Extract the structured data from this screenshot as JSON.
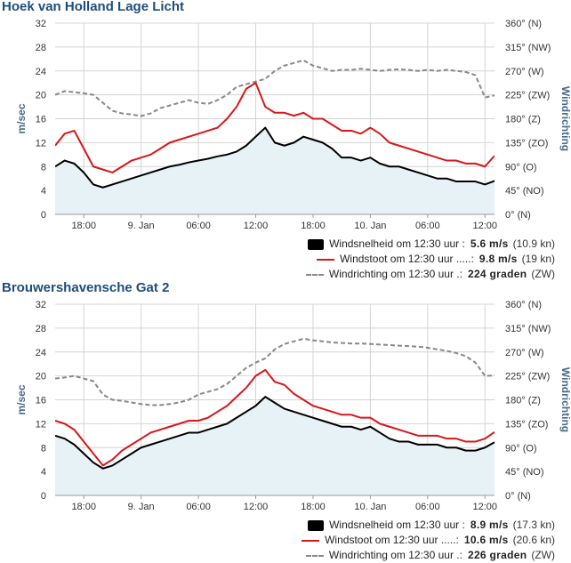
{
  "charts": [
    {
      "title": "Hoek van Holland Lage Licht",
      "legend": [
        {
          "label": "Windsnelheid om 12:30 uur :",
          "value": "5.6 m/s",
          "conv": "(10.9 kn)"
        },
        {
          "label": "Windstoot om 12:30 uur .....:",
          "value": "9.8 m/s",
          "conv": "(19 kn)"
        },
        {
          "label": "Windrichting om 12:30 uur .:",
          "value": "224 graden",
          "conv": "(ZW)"
        }
      ]
    },
    {
      "title": "Brouwershavensche Gat 2",
      "legend": [
        {
          "label": "Windsnelheid om 12:30 uur :",
          "value": "8.9 m/s",
          "conv": "(17.3 kn)"
        },
        {
          "label": "Windstoot om 12:30 uur .....:",
          "value": "10.6 m/s",
          "conv": "(20.6 kn)"
        },
        {
          "label": "Windrichting om 12:30 uur .:",
          "value": "226 graden",
          "conv": "(ZW)"
        }
      ]
    }
  ],
  "chart_data": [
    {
      "type": "line",
      "title": "Hoek van Holland Lage Licht",
      "ylabel": "m/sec",
      "y2label": "Windrichting",
      "ylim": [
        0,
        32
      ],
      "y2lim": [
        0,
        360
      ],
      "yticks": [
        "0",
        "4",
        "8",
        "12",
        "16",
        "20",
        "24",
        "28",
        "32"
      ],
      "y2ticks": [
        "0° (N)",
        "45° (NO)",
        "90° (O)",
        "135° (ZO)",
        "180° (Z)",
        "225° (ZW)",
        "270° (W)",
        "315° (NW)",
        "360° (N)"
      ],
      "x_hours_range": [
        -21,
        1
      ],
      "xticks": [
        {
          "label": "18:00",
          "h": -18.5
        },
        {
          "label": "9. Jan",
          "h": -12.5
        },
        {
          "label": "06:00",
          "h": -6.5
        },
        {
          "label": "12:00",
          "h": -0.5
        },
        {
          "label": "18:00",
          "h": 5.5
        },
        {
          "label": "10. Jan",
          "h": 11.5
        },
        {
          "label": "06:00",
          "h": 17.5
        },
        {
          "label": "12:00",
          "h": 23.5
        }
      ],
      "x_hours": [
        -21.5,
        -20.5,
        -19.5,
        -18.5,
        -17.5,
        -16.5,
        -15.5,
        -14.5,
        -13.5,
        -12.5,
        -11.5,
        -10.5,
        -9.5,
        -8.5,
        -7.5,
        -6.5,
        -5.5,
        -4.5,
        -3.5,
        -2.5,
        -1.5,
        -0.5,
        0.5,
        1.5,
        2.5,
        3.5,
        4.5,
        5.5,
        6.5,
        7.5,
        8.5,
        9.5,
        10.5,
        11.5,
        12.5,
        13.5,
        14.5,
        15.5,
        16.5,
        17.5,
        18.5,
        19.5,
        20.5,
        21.5,
        22.5,
        23.5,
        24.5
      ],
      "series": [
        {
          "name": "Windsnelheid",
          "color": "#000000",
          "values": [
            8,
            9,
            8.5,
            7,
            5,
            4.5,
            5,
            5.5,
            6,
            6.5,
            7,
            7.5,
            8,
            8.3,
            8.7,
            9,
            9.3,
            9.7,
            10,
            10.5,
            11.5,
            13,
            14.5,
            12,
            11.5,
            12,
            13,
            12.5,
            12,
            11,
            9.5,
            9.5,
            9,
            9.5,
            8.5,
            8,
            8,
            7.5,
            7,
            6.5,
            6,
            6,
            5.5,
            5.5,
            5.5,
            5,
            5.6
          ]
        },
        {
          "name": "Windstoot",
          "color": "#d8161b",
          "values": [
            11.5,
            13.5,
            14,
            11,
            8,
            7.5,
            7,
            8,
            9,
            9.5,
            10,
            11,
            12,
            12.5,
            13,
            13.5,
            14,
            14.5,
            16,
            18,
            21,
            22,
            18,
            17,
            17,
            16.5,
            17,
            16,
            16,
            15,
            14,
            14,
            13.5,
            14.5,
            13.5,
            12,
            11.5,
            11,
            10.5,
            10,
            9.5,
            9,
            9,
            8.5,
            8.5,
            8,
            9.8
          ]
        },
        {
          "name": "Windrichting",
          "color": "#888888",
          "dash": true,
          "values": [
            225,
            232,
            230,
            228,
            225,
            210,
            195,
            190,
            188,
            185,
            190,
            200,
            205,
            210,
            215,
            210,
            208,
            215,
            225,
            240,
            245,
            250,
            255,
            270,
            280,
            285,
            290,
            280,
            275,
            270,
            272,
            272,
            274,
            272,
            270,
            272,
            273,
            272,
            270,
            272,
            270,
            272,
            270,
            268,
            262,
            220,
            224
          ]
        }
      ]
    },
    {
      "type": "line",
      "title": "Brouwershavensche Gat 2",
      "ylabel": "m/sec",
      "y2label": "Windrichting",
      "ylim": [
        0,
        32
      ],
      "y2lim": [
        0,
        360
      ],
      "yticks": [
        "0",
        "4",
        "8",
        "12",
        "16",
        "20",
        "24",
        "28",
        "32"
      ],
      "y2ticks": [
        "0° (N)",
        "45° (NO)",
        "90° (O)",
        "135° (ZO)",
        "180° (Z)",
        "225° (ZW)",
        "270° (W)",
        "315° (NW)",
        "360° (N)"
      ],
      "x_hours_range": [
        -21,
        1
      ],
      "xticks": [
        {
          "label": "18:00",
          "h": -18.5
        },
        {
          "label": "9. Jan",
          "h": -12.5
        },
        {
          "label": "06:00",
          "h": -6.5
        },
        {
          "label": "12:00",
          "h": -0.5
        },
        {
          "label": "18:00",
          "h": 5.5
        },
        {
          "label": "10. Jan",
          "h": 11.5
        },
        {
          "label": "06:00",
          "h": 17.5
        },
        {
          "label": "12:00",
          "h": 23.5
        }
      ],
      "x_hours": [
        -21.5,
        -20.5,
        -19.5,
        -18.5,
        -17.5,
        -16.5,
        -15.5,
        -14.5,
        -13.5,
        -12.5,
        -11.5,
        -10.5,
        -9.5,
        -8.5,
        -7.5,
        -6.5,
        -5.5,
        -4.5,
        -3.5,
        -2.5,
        -1.5,
        -0.5,
        0.5,
        1.5,
        2.5,
        3.5,
        4.5,
        5.5,
        6.5,
        7.5,
        8.5,
        9.5,
        10.5,
        11.5,
        12.5,
        13.5,
        14.5,
        15.5,
        16.5,
        17.5,
        18.5,
        19.5,
        20.5,
        21.5,
        22.5,
        23.5,
        24.5
      ],
      "series": [
        {
          "name": "Windsnelheid",
          "color": "#000000",
          "values": [
            10,
            9.5,
            8.5,
            7,
            5.5,
            4.5,
            5,
            6,
            7,
            8,
            8.5,
            9,
            9.5,
            10,
            10.5,
            10.5,
            11,
            11.5,
            12,
            13,
            14,
            15,
            16.5,
            15.5,
            14.5,
            14,
            13.5,
            13,
            12.5,
            12,
            11.5,
            11.5,
            11,
            11.5,
            10.5,
            9.5,
            9,
            9,
            8.5,
            8.5,
            8.5,
            8,
            8,
            7.5,
            7.5,
            8,
            8.9
          ]
        },
        {
          "name": "Windstoot",
          "color": "#d8161b",
          "values": [
            12.5,
            12,
            11,
            9,
            7,
            5,
            6,
            7.5,
            8.5,
            9.5,
            10.5,
            11,
            11.5,
            12,
            12.5,
            12.5,
            13,
            14,
            15,
            16.5,
            18,
            20,
            21,
            19,
            18.5,
            17,
            16,
            15,
            14.5,
            14,
            13.5,
            13.5,
            13,
            13,
            12,
            11.5,
            11,
            10.5,
            10,
            10,
            10,
            9.5,
            9.5,
            9,
            9,
            9.5,
            10.6
          ]
        },
        {
          "name": "Windrichting",
          "color": "#888888",
          "dash": true,
          "values": [
            220,
            222,
            225,
            220,
            215,
            190,
            180,
            178,
            175,
            172,
            170,
            170,
            172,
            175,
            180,
            190,
            195,
            200,
            210,
            225,
            240,
            250,
            258,
            275,
            285,
            290,
            295,
            292,
            290,
            288,
            287,
            286,
            286,
            285,
            284,
            283,
            282,
            281,
            280,
            278,
            275,
            272,
            268,
            262,
            250,
            225,
            226
          ]
        }
      ]
    }
  ]
}
